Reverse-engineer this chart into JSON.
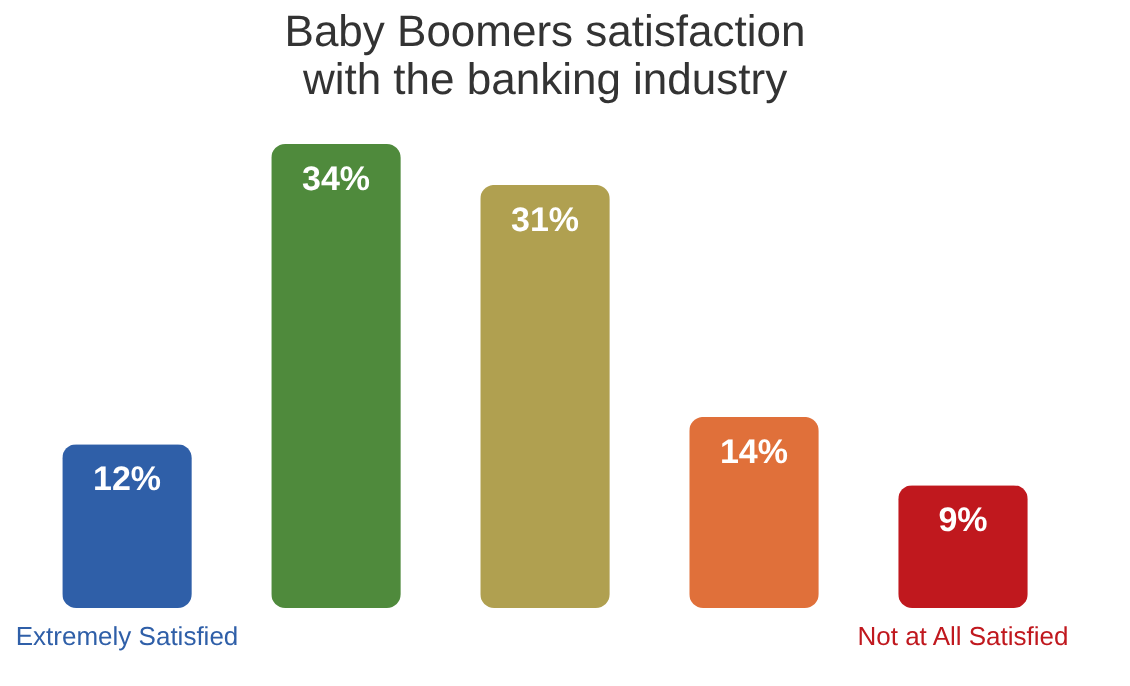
{
  "chart_data": {
    "type": "bar",
    "title": "Baby Boomers satisfaction with the banking industry",
    "categories": [
      "Extremely Satisfied",
      null,
      null,
      null,
      "Not at All Satisfied"
    ],
    "values": [
      12,
      34,
      31,
      14,
      9
    ],
    "value_labels": [
      "12%",
      "34%",
      "31%",
      "14%",
      "9%"
    ],
    "colors": [
      "#2f5fa8",
      "#4f8a3c",
      "#b0a050",
      "#e0703a",
      "#c0181e"
    ],
    "grid": false
  }
}
